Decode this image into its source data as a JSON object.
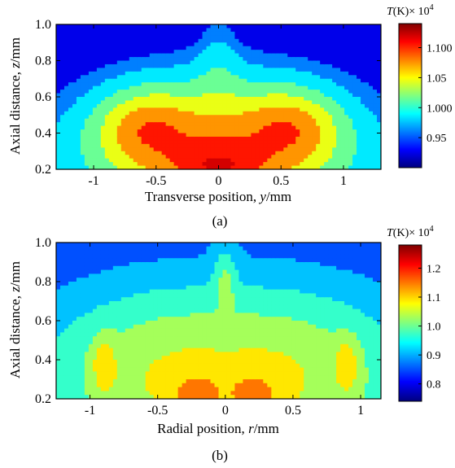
{
  "chart_data": [
    {
      "type": "heatmap",
      "panel_label": "(a)",
      "xlabel_prefix": "Transverse position, ",
      "xlabel_var": "y",
      "xlabel_unit": "/mm",
      "ylabel_prefix": "Axial distance, ",
      "ylabel_var": "z",
      "ylabel_unit": "/mm",
      "xlim": [
        -1.3,
        1.3
      ],
      "ylim": [
        0.2,
        1.0
      ],
      "xticks": [
        -1,
        -0.5,
        0,
        0.5,
        1
      ],
      "xtick_labels": [
        "-1",
        "-0.5",
        "0",
        "0.5",
        "1"
      ],
      "yticks": [
        0.2,
        0.4,
        0.6,
        0.8,
        1.0
      ],
      "ytick_labels": [
        "0.2",
        "0.4",
        "0.6",
        "0.8",
        "1.0"
      ],
      "colorbar": {
        "title_var": "T",
        "title_unit": "(K)",
        "title_scale": "× 10",
        "title_exp": "4",
        "range": [
          0.9,
          1.14
        ],
        "ticks": [
          0.95,
          1.0,
          1.05,
          1.1
        ],
        "tick_labels": [
          "0.95",
          "1.000",
          "1.05",
          "1.100"
        ]
      },
      "field": {
        "levels": [
          0.9,
          0.95,
          0.97,
          1.0,
          1.03,
          1.06,
          1.09,
          1.12
        ],
        "description_values": {
          "edge_top": 0.91,
          "center_bottom": 1.13,
          "center_mid": 1.1,
          "shoulder": 1.06
        }
      }
    },
    {
      "type": "heatmap",
      "panel_label": "(b)",
      "xlabel_prefix": "Radial position, ",
      "xlabel_var": "r",
      "xlabel_unit": "/mm",
      "ylabel_prefix": "Axial distance, ",
      "ylabel_var": "z",
      "ylabel_unit": "/mm",
      "xlim": [
        -1.25,
        1.15
      ],
      "ylim": [
        0.2,
        1.0
      ],
      "xticks": [
        -1,
        -0.5,
        0,
        0.5,
        1
      ],
      "xtick_labels": [
        "-1",
        "-0.5",
        "0",
        "0.5",
        "1"
      ],
      "yticks": [
        0.2,
        0.4,
        0.6,
        0.8,
        1.0
      ],
      "ytick_labels": [
        "0.2",
        "0.4",
        "0.6",
        "0.8",
        "1.0"
      ],
      "colorbar": {
        "title_var": "T",
        "title_unit": "(K)",
        "title_scale": "× 10",
        "title_exp": "4",
        "range": [
          0.74,
          1.28
        ],
        "ticks": [
          0.8,
          0.9,
          1.0,
          1.1,
          1.2
        ],
        "tick_labels": [
          "0.8",
          "0.9",
          "1.0",
          "1.1",
          "1.2"
        ]
      },
      "field": {
        "levels": [
          0.76,
          0.82,
          0.88,
          0.94,
          1.0,
          1.06,
          1.12,
          1.18,
          1.24
        ],
        "description_values": {
          "edge_top": 0.77,
          "center_bottom": 1.27,
          "side_peaks": 1.22,
          "center_top": 1.07
        }
      }
    }
  ]
}
